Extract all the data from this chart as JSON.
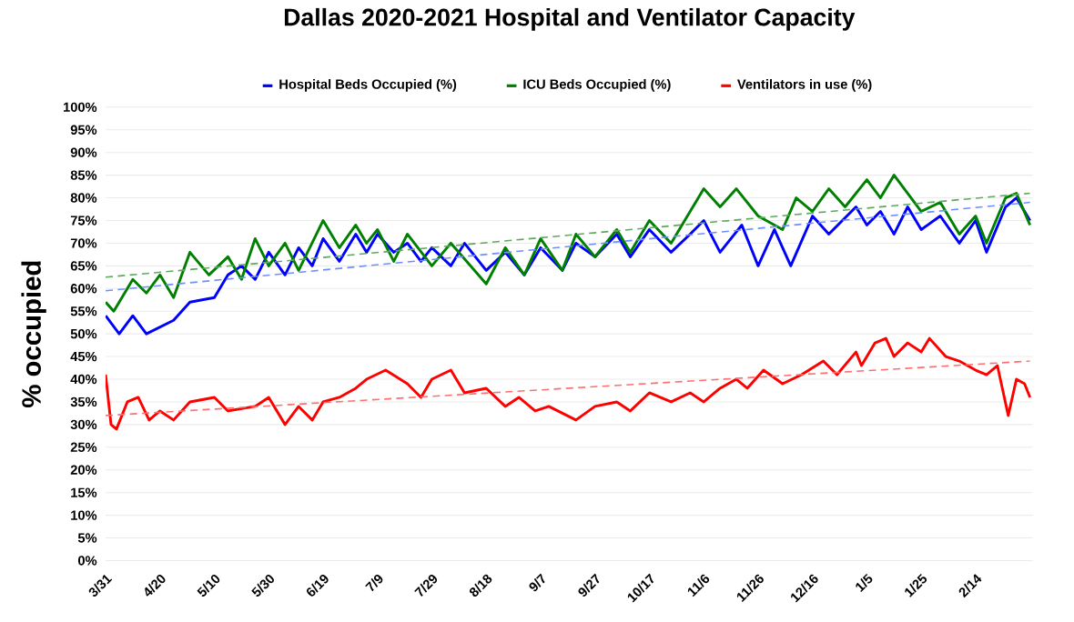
{
  "chart_data": {
    "type": "line",
    "title": "Dallas 2020-2021 Hospital and Ventilator Capacity",
    "ylabel": "% occupied",
    "legend": "top",
    "grid": "y",
    "xlim": [
      "2020-03-31",
      "2021-03-07"
    ],
    "xticks": [
      {
        "value": "2020-03-31",
        "label": "3/31"
      },
      {
        "value": "2020-04-20",
        "label": "4/20"
      },
      {
        "value": "2020-05-10",
        "label": "5/10"
      },
      {
        "value": "2020-05-30",
        "label": "5/30"
      },
      {
        "value": "2020-06-19",
        "label": "6/19"
      },
      {
        "value": "2020-07-09",
        "label": "7/9"
      },
      {
        "value": "2020-07-29",
        "label": "7/29"
      },
      {
        "value": "2020-08-18",
        "label": "8/18"
      },
      {
        "value": "2020-09-07",
        "label": "9/7"
      },
      {
        "value": "2020-09-27",
        "label": "9/27"
      },
      {
        "value": "2020-10-17",
        "label": "10/17"
      },
      {
        "value": "2020-11-06",
        "label": "11/6"
      },
      {
        "value": "2020-11-26",
        "label": "11/26"
      },
      {
        "value": "2020-12-16",
        "label": "12/16"
      },
      {
        "value": "2021-01-05",
        "label": "1/5"
      },
      {
        "value": "2021-01-25",
        "label": "1/25"
      },
      {
        "value": "2021-02-14",
        "label": "2/14"
      }
    ],
    "ylim": [
      0,
      100
    ],
    "yticks": [
      {
        "value": 0,
        "label": "0%"
      },
      {
        "value": 5,
        "label": "5%"
      },
      {
        "value": 10,
        "label": "10%"
      },
      {
        "value": 15,
        "label": "15%"
      },
      {
        "value": 20,
        "label": "20%"
      },
      {
        "value": 25,
        "label": "25%"
      },
      {
        "value": 30,
        "label": "30%"
      },
      {
        "value": 35,
        "label": "35%"
      },
      {
        "value": 40,
        "label": "40%"
      },
      {
        "value": 45,
        "label": "45%"
      },
      {
        "value": 50,
        "label": "50%"
      },
      {
        "value": 55,
        "label": "55%"
      },
      {
        "value": 60,
        "label": "60%"
      },
      {
        "value": 65,
        "label": "65%"
      },
      {
        "value": 70,
        "label": "70%"
      },
      {
        "value": 75,
        "label": "75%"
      },
      {
        "value": 80,
        "label": "80%"
      },
      {
        "value": 85,
        "label": "85%"
      },
      {
        "value": 90,
        "label": "90%"
      },
      {
        "value": 95,
        "label": "95%"
      },
      {
        "value": 100,
        "label": "100%"
      }
    ],
    "series": [
      {
        "name": "Hospital Beds Occupied (%)",
        "color": "#0000ff",
        "line_style": "solid",
        "x": [
          "2020-03-31",
          "2020-04-05",
          "2020-04-10",
          "2020-04-15",
          "2020-04-25",
          "2020-05-01",
          "2020-05-10",
          "2020-05-15",
          "2020-05-20",
          "2020-05-25",
          "2020-05-30",
          "2020-06-05",
          "2020-06-10",
          "2020-06-15",
          "2020-06-19",
          "2020-06-25",
          "2020-07-01",
          "2020-07-05",
          "2020-07-09",
          "2020-07-15",
          "2020-07-20",
          "2020-07-25",
          "2020-07-29",
          "2020-08-05",
          "2020-08-10",
          "2020-08-18",
          "2020-08-25",
          "2020-09-01",
          "2020-09-07",
          "2020-09-15",
          "2020-09-20",
          "2020-09-27",
          "2020-10-05",
          "2020-10-10",
          "2020-10-17",
          "2020-10-25",
          "2020-11-01",
          "2020-11-06",
          "2020-11-12",
          "2020-11-20",
          "2020-11-26",
          "2020-12-02",
          "2020-12-08",
          "2020-12-16",
          "2020-12-22",
          "2021-01-01",
          "2021-01-05",
          "2021-01-10",
          "2021-01-15",
          "2021-01-20",
          "2021-01-25",
          "2021-02-01",
          "2021-02-08",
          "2021-02-14",
          "2021-02-18",
          "2021-02-25",
          "2021-03-01",
          "2021-03-06"
        ],
        "values": [
          54,
          50,
          54,
          50,
          53,
          57,
          58,
          63,
          65,
          62,
          68,
          63,
          69,
          65,
          71,
          66,
          72,
          68,
          72,
          68,
          70,
          66,
          69,
          65,
          70,
          64,
          68,
          63,
          69,
          64,
          70,
          67,
          72,
          67,
          73,
          68,
          72,
          75,
          68,
          74,
          65,
          73,
          65,
          76,
          72,
          78,
          74,
          77,
          72,
          78,
          73,
          76,
          70,
          75,
          68,
          78,
          80,
          75
        ]
      },
      {
        "name": "ICU Beds Occupied (%)",
        "color": "#008000",
        "line_style": "solid",
        "x": [
          "2020-03-31",
          "2020-04-03",
          "2020-04-10",
          "2020-04-15",
          "2020-04-20",
          "2020-04-25",
          "2020-05-01",
          "2020-05-08",
          "2020-05-15",
          "2020-05-20",
          "2020-05-25",
          "2020-05-30",
          "2020-06-05",
          "2020-06-10",
          "2020-06-19",
          "2020-06-25",
          "2020-07-01",
          "2020-07-05",
          "2020-07-09",
          "2020-07-15",
          "2020-07-20",
          "2020-07-29",
          "2020-08-05",
          "2020-08-18",
          "2020-08-25",
          "2020-09-01",
          "2020-09-07",
          "2020-09-15",
          "2020-09-20",
          "2020-09-27",
          "2020-10-05",
          "2020-10-10",
          "2020-10-17",
          "2020-10-25",
          "2020-11-01",
          "2020-11-06",
          "2020-11-12",
          "2020-11-18",
          "2020-11-26",
          "2020-12-05",
          "2020-12-10",
          "2020-12-16",
          "2020-12-22",
          "2020-12-28",
          "2021-01-05",
          "2021-01-10",
          "2021-01-15",
          "2021-01-20",
          "2021-01-25",
          "2021-02-01",
          "2021-02-08",
          "2021-02-14",
          "2021-02-18",
          "2021-02-25",
          "2021-03-01",
          "2021-03-06"
        ],
        "values": [
          57,
          55,
          62,
          59,
          63,
          58,
          68,
          63,
          67,
          62,
          71,
          65,
          70,
          64,
          75,
          69,
          74,
          70,
          73,
          66,
          72,
          65,
          70,
          61,
          69,
          63,
          71,
          64,
          72,
          67,
          73,
          68,
          75,
          70,
          77,
          82,
          78,
          82,
          76,
          73,
          80,
          77,
          82,
          78,
          84,
          80,
          85,
          81,
          77,
          79,
          72,
          76,
          70,
          80,
          81,
          74
        ]
      },
      {
        "name": "Ventilators in use (%)",
        "color": "#ff0000",
        "line_style": "solid",
        "x": [
          "2020-03-31",
          "2020-04-02",
          "2020-04-04",
          "2020-04-08",
          "2020-04-12",
          "2020-04-16",
          "2020-04-20",
          "2020-04-25",
          "2020-05-01",
          "2020-05-10",
          "2020-05-15",
          "2020-05-25",
          "2020-05-30",
          "2020-06-05",
          "2020-06-10",
          "2020-06-15",
          "2020-06-19",
          "2020-06-25",
          "2020-07-01",
          "2020-07-05",
          "2020-07-12",
          "2020-07-20",
          "2020-07-25",
          "2020-07-29",
          "2020-08-05",
          "2020-08-10",
          "2020-08-18",
          "2020-08-25",
          "2020-08-30",
          "2020-09-05",
          "2020-09-10",
          "2020-09-20",
          "2020-09-27",
          "2020-10-05",
          "2020-10-10",
          "2020-10-17",
          "2020-10-25",
          "2020-11-01",
          "2020-11-06",
          "2020-11-12",
          "2020-11-18",
          "2020-11-22",
          "2020-11-28",
          "2020-12-05",
          "2020-12-12",
          "2020-12-20",
          "2020-12-25",
          "2021-01-01",
          "2021-01-03",
          "2021-01-08",
          "2021-01-12",
          "2021-01-15",
          "2021-01-20",
          "2021-01-25",
          "2021-01-28",
          "2021-02-03",
          "2021-02-08",
          "2021-02-14",
          "2021-02-18",
          "2021-02-22",
          "2021-02-26",
          "2021-03-01",
          "2021-03-04",
          "2021-03-06"
        ],
        "values": [
          41,
          30,
          29,
          35,
          36,
          31,
          33,
          31,
          35,
          36,
          33,
          34,
          36,
          30,
          34,
          31,
          35,
          36,
          38,
          40,
          42,
          39,
          36,
          40,
          42,
          37,
          38,
          34,
          36,
          33,
          34,
          31,
          34,
          35,
          33,
          37,
          35,
          37,
          35,
          38,
          40,
          38,
          42,
          39,
          41,
          44,
          41,
          46,
          43,
          48,
          49,
          45,
          48,
          46,
          49,
          45,
          44,
          42,
          41,
          43,
          32,
          40,
          39,
          36
        ]
      },
      {
        "type": "line",
        "color": "#6f8fff",
        "line_style": "dashed",
        "x": [
          "2020-03-31",
          "2021-03-06"
        ],
        "values": [
          59.5,
          79
        ]
      },
      {
        "type": "line",
        "color": "#5fa85f",
        "line_style": "dashed",
        "x": [
          "2020-03-31",
          "2021-03-06"
        ],
        "values": [
          62.5,
          81
        ]
      },
      {
        "type": "line",
        "color": "#ff6f6f",
        "line_style": "dashed",
        "x": [
          "2020-03-31",
          "2021-03-06"
        ],
        "values": [
          32,
          44
        ]
      }
    ]
  }
}
